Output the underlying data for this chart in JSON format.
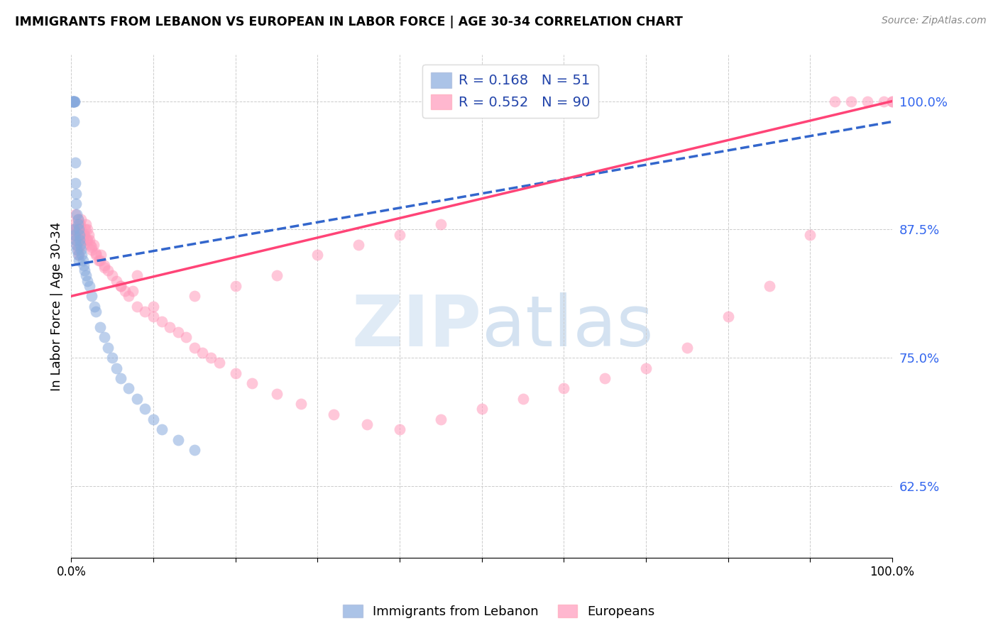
{
  "title": "IMMIGRANTS FROM LEBANON VS EUROPEAN IN LABOR FORCE | AGE 30-34 CORRELATION CHART",
  "source": "Source: ZipAtlas.com",
  "ylabel": "In Labor Force | Age 30-34",
  "y_tick_labels": [
    "62.5%",
    "75.0%",
    "87.5%",
    "100.0%"
  ],
  "y_tick_values": [
    0.625,
    0.75,
    0.875,
    1.0
  ],
  "legend_label1": "Immigrants from Lebanon",
  "legend_label2": "Europeans",
  "blue_color": "#88AADD",
  "pink_color": "#FF99BB",
  "blue_line_color": "#3366CC",
  "pink_line_color": "#FF4477",
  "watermark_zip": "ZIP",
  "watermark_atlas": "atlas",
  "R_blue": 0.168,
  "N_blue": 51,
  "R_pink": 0.552,
  "N_pink": 90,
  "xlim": [
    0.0,
    1.0
  ],
  "ylim": [
    0.555,
    1.045
  ],
  "blue_scatter_x": [
    0.001,
    0.001,
    0.002,
    0.002,
    0.003,
    0.003,
    0.003,
    0.004,
    0.004,
    0.005,
    0.005,
    0.006,
    0.006,
    0.007,
    0.008,
    0.008,
    0.009,
    0.01,
    0.01,
    0.011,
    0.012,
    0.013,
    0.014,
    0.015,
    0.016,
    0.018,
    0.02,
    0.022,
    0.025,
    0.028,
    0.03,
    0.035,
    0.04,
    0.045,
    0.05,
    0.055,
    0.06,
    0.07,
    0.08,
    0.09,
    0.1,
    0.11,
    0.13,
    0.15,
    0.003,
    0.004,
    0.005,
    0.006,
    0.007,
    0.008,
    0.009
  ],
  "blue_scatter_y": [
    1.0,
    1.0,
    1.0,
    1.0,
    1.0,
    1.0,
    0.98,
    1.0,
    1.0,
    0.94,
    0.92,
    0.91,
    0.9,
    0.89,
    0.885,
    0.88,
    0.875,
    0.87,
    0.865,
    0.86,
    0.855,
    0.85,
    0.845,
    0.84,
    0.835,
    0.83,
    0.825,
    0.82,
    0.81,
    0.8,
    0.795,
    0.78,
    0.77,
    0.76,
    0.75,
    0.74,
    0.73,
    0.72,
    0.71,
    0.7,
    0.69,
    0.68,
    0.67,
    0.66,
    0.875,
    0.87,
    0.865,
    0.86,
    0.855,
    0.85,
    0.845
  ],
  "pink_scatter_x": [
    0.001,
    0.002,
    0.003,
    0.004,
    0.005,
    0.006,
    0.007,
    0.008,
    0.009,
    0.01,
    0.011,
    0.012,
    0.013,
    0.014,
    0.015,
    0.016,
    0.017,
    0.018,
    0.019,
    0.02,
    0.021,
    0.022,
    0.023,
    0.025,
    0.027,
    0.03,
    0.033,
    0.036,
    0.04,
    0.045,
    0.05,
    0.055,
    0.06,
    0.065,
    0.07,
    0.075,
    0.08,
    0.09,
    0.1,
    0.11,
    0.12,
    0.13,
    0.14,
    0.15,
    0.16,
    0.17,
    0.18,
    0.2,
    0.22,
    0.25,
    0.28,
    0.32,
    0.36,
    0.4,
    0.45,
    0.5,
    0.55,
    0.6,
    0.65,
    0.7,
    0.75,
    0.8,
    0.85,
    0.9,
    0.93,
    0.95,
    0.97,
    0.99,
    1.0,
    1.0,
    0.1,
    0.15,
    0.2,
    0.25,
    0.3,
    0.35,
    0.4,
    0.45,
    0.06,
    0.08,
    0.005,
    0.008,
    0.01,
    0.012,
    0.015,
    0.02,
    0.025,
    0.03,
    0.035,
    0.04
  ],
  "pink_scatter_y": [
    0.87,
    0.875,
    0.88,
    0.875,
    0.87,
    0.865,
    0.86,
    0.855,
    0.85,
    0.875,
    0.88,
    0.885,
    0.87,
    0.865,
    0.86,
    0.87,
    0.875,
    0.88,
    0.865,
    0.875,
    0.87,
    0.865,
    0.86,
    0.855,
    0.86,
    0.85,
    0.845,
    0.85,
    0.84,
    0.835,
    0.83,
    0.825,
    0.82,
    0.815,
    0.81,
    0.815,
    0.8,
    0.795,
    0.79,
    0.785,
    0.78,
    0.775,
    0.77,
    0.76,
    0.755,
    0.75,
    0.745,
    0.735,
    0.725,
    0.715,
    0.705,
    0.695,
    0.685,
    0.68,
    0.69,
    0.7,
    0.71,
    0.72,
    0.73,
    0.74,
    0.76,
    0.79,
    0.82,
    0.87,
    1.0,
    1.0,
    1.0,
    1.0,
    1.0,
    1.0,
    0.8,
    0.81,
    0.82,
    0.83,
    0.85,
    0.86,
    0.87,
    0.88,
    0.82,
    0.83,
    0.89,
    0.885,
    0.88,
    0.875,
    0.87,
    0.865,
    0.858,
    0.852,
    0.845,
    0.838
  ],
  "blue_trend_x": [
    0.0,
    1.0
  ],
  "blue_trend_y": [
    0.84,
    0.98
  ],
  "pink_trend_x": [
    0.0,
    1.0
  ],
  "pink_trend_y": [
    0.81,
    1.0
  ]
}
